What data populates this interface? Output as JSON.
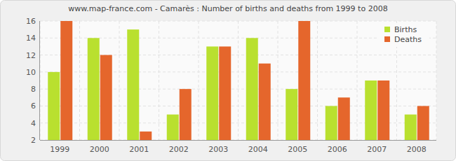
{
  "chart_data": {
    "type": "bar",
    "title": "www.map-france.com - Camarès : Number of births and deaths from 1999 to 2008",
    "categories": [
      "1999",
      "2000",
      "2001",
      "2002",
      "2003",
      "2004",
      "2005",
      "2006",
      "2007",
      "2008"
    ],
    "series": [
      {
        "name": "Births",
        "color": "#b9e02f",
        "values": [
          10,
          14,
          15,
          5,
          13,
          14,
          8,
          6,
          9,
          5
        ]
      },
      {
        "name": "Deaths",
        "color": "#e5662c",
        "values": [
          16,
          12,
          3,
          8,
          13,
          11,
          16,
          7,
          9,
          6
        ]
      }
    ],
    "ylim": [
      2,
      16
    ],
    "yticks": [
      2,
      4,
      6,
      8,
      10,
      12,
      14,
      16
    ],
    "grid": true,
    "legend": "upper right"
  }
}
